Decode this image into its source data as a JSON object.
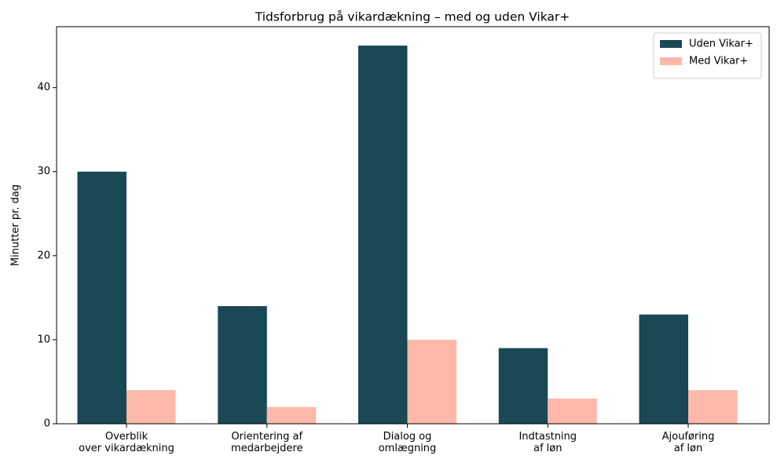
{
  "chart_data": {
    "type": "bar",
    "title": "Tidsforbrug på vikardækning – med og uden Vikar+",
    "y_label": "Minutter pr. dag",
    "categories": [
      "Overblik\nover vikardækning",
      "Orientering af\nmedarbejdere",
      "Dialog og\nomlægning",
      "Indtastning\naf løn",
      "Ajouføring\naf løn"
    ],
    "series": [
      {
        "name": "Uden Vikar+",
        "color": "#1a4855",
        "values": [
          30,
          14,
          45,
          9,
          13
        ]
      },
      {
        "name": "Med Vikar+",
        "color": "#fdb8aa",
        "values": [
          4,
          2,
          10,
          3,
          4
        ]
      }
    ],
    "ylim": [
      0,
      47.25
    ],
    "yticks": [
      0,
      10,
      20,
      30,
      40
    ],
    "legend": "upper right"
  }
}
